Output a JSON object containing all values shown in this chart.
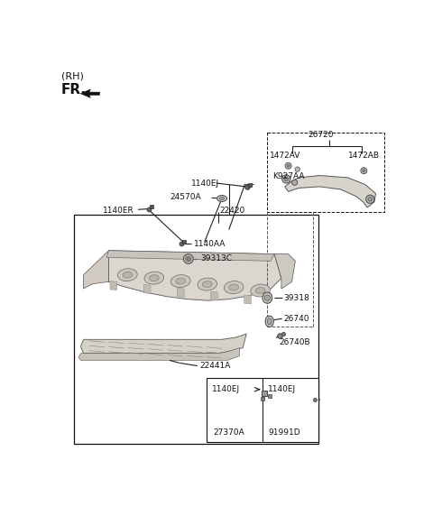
{
  "bg_color": "#ffffff",
  "fig_width": 4.8,
  "fig_height": 5.82,
  "dpi": 100,
  "labels": {
    "rh": "(RH)",
    "fr": "FR.",
    "1140EJ_top": "1140EJ",
    "24570A": "24570A",
    "1140ER": "1140ER",
    "22420": "22420",
    "1140AA": "1140AA",
    "39313C": "39313C",
    "39318": "39318",
    "26740": "26740",
    "26740B": "26740B",
    "22441A": "22441A",
    "26720": "26720",
    "1472AV": "1472AV",
    "1472AB": "1472AB",
    "K927AA": "K927AA",
    "1140EJ_b1": "1140EJ",
    "27370A": "27370A",
    "1140EJ_b2": "1140EJ",
    "91991D": "91991D"
  },
  "line_color": "#222222",
  "part_fill": "#e8e5e0",
  "part_edge": "#555555"
}
